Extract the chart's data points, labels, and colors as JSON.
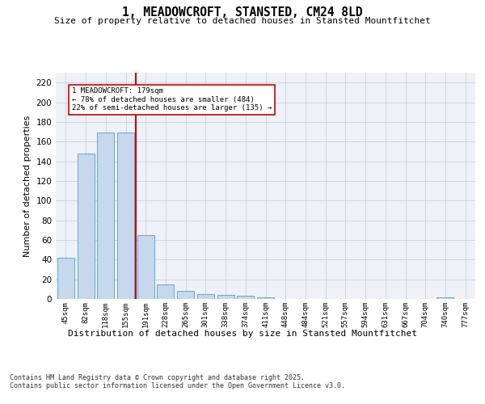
{
  "title": "1, MEADOWCROFT, STANSTED, CM24 8LD",
  "subtitle": "Size of property relative to detached houses in Stansted Mountfitchet",
  "xlabel": "Distribution of detached houses by size in Stansted Mountfitchet",
  "ylabel": "Number of detached properties",
  "categories": [
    "45sqm",
    "82sqm",
    "118sqm",
    "155sqm",
    "191sqm",
    "228sqm",
    "265sqm",
    "301sqm",
    "338sqm",
    "374sqm",
    "411sqm",
    "448sqm",
    "484sqm",
    "521sqm",
    "557sqm",
    "594sqm",
    "631sqm",
    "667sqm",
    "704sqm",
    "740sqm",
    "777sqm"
  ],
  "values": [
    42,
    148,
    169,
    169,
    65,
    15,
    8,
    5,
    4,
    3,
    2,
    0,
    0,
    0,
    0,
    0,
    0,
    0,
    0,
    2,
    0
  ],
  "bar_color": "#c5d8ed",
  "bar_edge_color": "#5a9ac8",
  "grid_color": "#c8d0de",
  "background_color": "#eef2f8",
  "vline_color": "#cc0000",
  "vline_x": 3.5,
  "annotation_text": "1 MEADOWCROFT: 179sqm\n← 78% of detached houses are smaller (484)\n22% of semi-detached houses are larger (135) →",
  "annotation_box_color": "#ffffff",
  "annotation_box_edge_color": "#cc0000",
  "ylim": [
    0,
    230
  ],
  "yticks": [
    0,
    20,
    40,
    60,
    80,
    100,
    120,
    140,
    160,
    180,
    200,
    220
  ],
  "footer_line1": "Contains HM Land Registry data © Crown copyright and database right 2025.",
  "footer_line2": "Contains public sector information licensed under the Open Government Licence v3.0."
}
